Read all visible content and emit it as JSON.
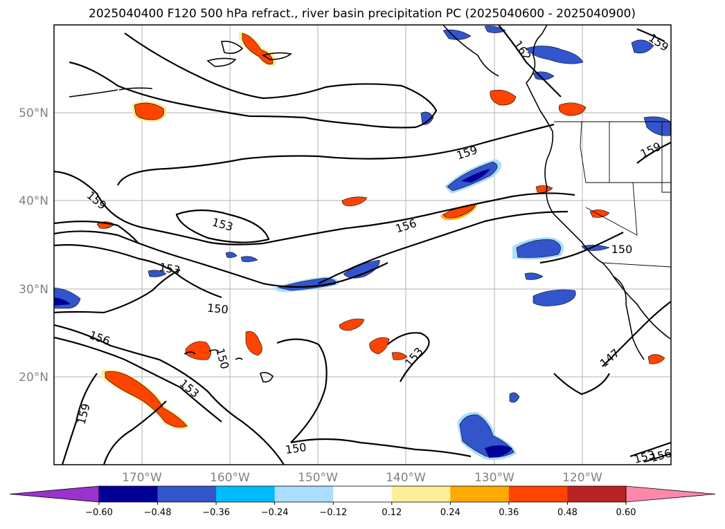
{
  "title": "2025040400 F120 500 hPa refract., river basin precipitation PC (2025040600 - 2025040900)",
  "latitude_labels": [
    "50°N",
    "40°N",
    "30°N",
    "20°N"
  ],
  "longitude_labels": [
    "170°W",
    "160°W",
    "150°W",
    "140°W",
    "130°W",
    "120°W"
  ],
  "contour_labels": [
    "159",
    "153",
    "153",
    "150",
    "156",
    "150",
    "153",
    "159",
    "156",
    "159",
    "162",
    "159",
    "159",
    "150",
    "147",
    "153",
    "150",
    "153",
    "156"
  ],
  "colorbar": {
    "ticks": [
      "−0.60",
      "−0.48",
      "−0.36",
      "−0.24",
      "−0.12",
      "0.12",
      "0.24",
      "0.36",
      "0.48",
      "0.60"
    ],
    "colors": [
      "#9933cc",
      "#000099",
      "#3355cc",
      "#00bbff",
      "#aaddff",
      "#ffffff",
      "#ffee99",
      "#ffaa00",
      "#ff4400",
      "#bb2222",
      "#ff88aa"
    ]
  }
}
